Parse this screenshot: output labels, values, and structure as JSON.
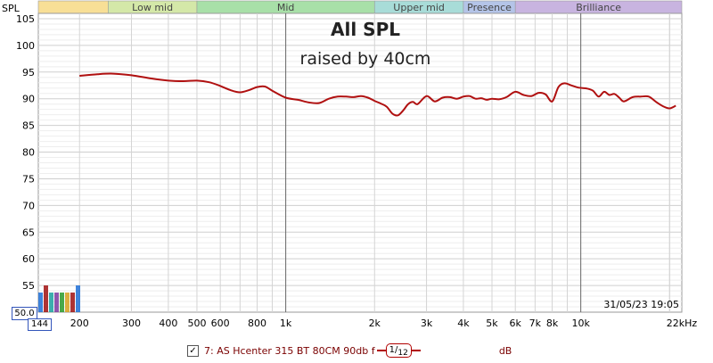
{
  "chart_data": {
    "type": "line",
    "title": "All SPL",
    "subtitle": "raised by 40cm",
    "ylabel": "SPL",
    "xunit": "kHz",
    "x_scale": "log",
    "xlim": [
      145,
      22000
    ],
    "ylim": [
      50,
      106
    ],
    "grid": true,
    "y_ticks": [
      55,
      60,
      65,
      70,
      75,
      80,
      85,
      90,
      95,
      100,
      105
    ],
    "x_ticks": [
      {
        "f": 200,
        "label": "200"
      },
      {
        "f": 300,
        "label": "300"
      },
      {
        "f": 400,
        "label": "400"
      },
      {
        "f": 500,
        "label": "500"
      },
      {
        "f": 600,
        "label": "600"
      },
      {
        "f": 800,
        "label": "800"
      },
      {
        "f": 1000,
        "label": "1k"
      },
      {
        "f": 2000,
        "label": "2k"
      },
      {
        "f": 3000,
        "label": "3k"
      },
      {
        "f": 4000,
        "label": "4k"
      },
      {
        "f": 5000,
        "label": "5k"
      },
      {
        "f": 6000,
        "label": "6k"
      },
      {
        "f": 7000,
        "label": "7k"
      },
      {
        "f": 8000,
        "label": "8k"
      },
      {
        "f": 10000,
        "label": "10k"
      },
      {
        "f": 22000,
        "label": "22kHz"
      }
    ],
    "bands": [
      {
        "label": "",
        "from": 145,
        "to": 250,
        "color": "#f8df96"
      },
      {
        "label": "Low mid",
        "from": 250,
        "to": 500,
        "color": "#d4e8a8"
      },
      {
        "label": "Mid",
        "from": 500,
        "to": 2000,
        "color": "#a8e0a8"
      },
      {
        "label": "Upper mid",
        "from": 2000,
        "to": 4000,
        "color": "#a8dcd8"
      },
      {
        "label": "Presence",
        "from": 4000,
        "to": 6000,
        "color": "#b4c4e8"
      },
      {
        "label": "Brilliance",
        "from": 6000,
        "to": 22000,
        "color": "#c8b4e0"
      }
    ],
    "series": [
      {
        "name": "7: AS Hcenter 315 BT 80CM 90db",
        "color": "#b01010",
        "x": [
          200,
          230,
          260,
          300,
          350,
          400,
          450,
          500,
          550,
          600,
          650,
          700,
          750,
          800,
          850,
          900,
          1000,
          1100,
          1200,
          1300,
          1400,
          1500,
          1600,
          1700,
          1800,
          1900,
          2000,
          2100,
          2200,
          2300,
          2400,
          2500,
          2600,
          2700,
          2800,
          3000,
          3200,
          3400,
          3600,
          3800,
          4000,
          4200,
          4400,
          4600,
          4800,
          5000,
          5300,
          5600,
          6000,
          6400,
          6800,
          7200,
          7600,
          8000,
          8400,
          8800,
          9300,
          9800,
          10500,
          11000,
          11500,
          12000,
          12500,
          13000,
          13500,
          14000,
          15000,
          16000,
          17000,
          18000,
          19000,
          20000,
          21000
        ],
        "y": [
          94.3,
          94.6,
          94.7,
          94.4,
          93.8,
          93.4,
          93.3,
          93.4,
          93.1,
          92.4,
          91.6,
          91.2,
          91.6,
          92.2,
          92.3,
          91.5,
          90.2,
          89.8,
          89.3,
          89.2,
          90.0,
          90.4,
          90.4,
          90.3,
          90.5,
          90.2,
          89.6,
          89.1,
          88.5,
          87.2,
          86.9,
          87.8,
          89.0,
          89.4,
          89.0,
          90.5,
          89.5,
          90.2,
          90.3,
          90.0,
          90.4,
          90.5,
          90.0,
          90.1,
          89.8,
          90.0,
          89.9,
          90.3,
          91.3,
          90.7,
          90.5,
          91.1,
          90.8,
          89.5,
          92.2,
          92.9,
          92.5,
          92.1,
          91.9,
          91.5,
          90.4,
          91.3,
          90.7,
          90.9,
          90.2,
          89.5,
          90.3,
          90.4,
          90.4,
          89.4,
          88.6,
          88.2,
          88.7
        ]
      }
    ],
    "timestamp": "31/05/23 19:05",
    "y_bottom_label": "50.0",
    "x_left_label": "144"
  },
  "legend": {
    "checked": true,
    "checkbox_symbol": "✓",
    "label": "7: AS Hcenter 315 BT 80CM 90db f",
    "smoothing_num": "1",
    "smoothing_den": "12",
    "unit": "dB"
  }
}
